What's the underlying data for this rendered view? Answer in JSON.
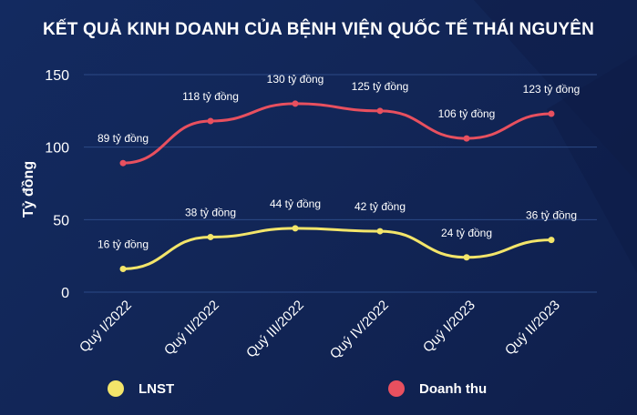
{
  "title": "KẾT QUẢ KINH DOANH CỦA BỆNH VIỆN QUỐC TẾ THÁI NGUYÊN",
  "chart_data": {
    "type": "line",
    "title": "KẾT QUẢ KINH DOANH CỦA BỆNH VIỆN QUỐC TẾ THÁI NGUYÊN",
    "ylabel": "Tỷ đồng",
    "xlabel": "",
    "categories": [
      "Quý I/2022",
      "Quý II/2022",
      "Quý III/2022",
      "Quý IV/2022",
      "Quý I/2023",
      "Quý II/2023"
    ],
    "ylim": [
      0,
      150
    ],
    "yticks": [
      "0",
      "50",
      "100",
      "150"
    ],
    "grid": true,
    "legend_position": "bottom",
    "series": [
      {
        "name": "LNST",
        "color": "#f3e56a",
        "values": [
          16,
          38,
          44,
          42,
          24,
          36
        ],
        "labels": [
          "16 tỷ đồng",
          "38 tỷ đồng",
          "44 tỷ đồng",
          "42 tỷ đồng",
          "24 tỷ đồng",
          "36 tỷ đồng"
        ]
      },
      {
        "name": "Doanh thu",
        "color": "#e8505f",
        "values": [
          89,
          118,
          130,
          125,
          106,
          123
        ],
        "labels": [
          "89 tỷ đồng",
          "118 tỷ đồng",
          "130 tỷ đồng",
          "125 tỷ đồng",
          "106 tỷ đồng",
          "123 tỷ đồng"
        ]
      }
    ]
  }
}
